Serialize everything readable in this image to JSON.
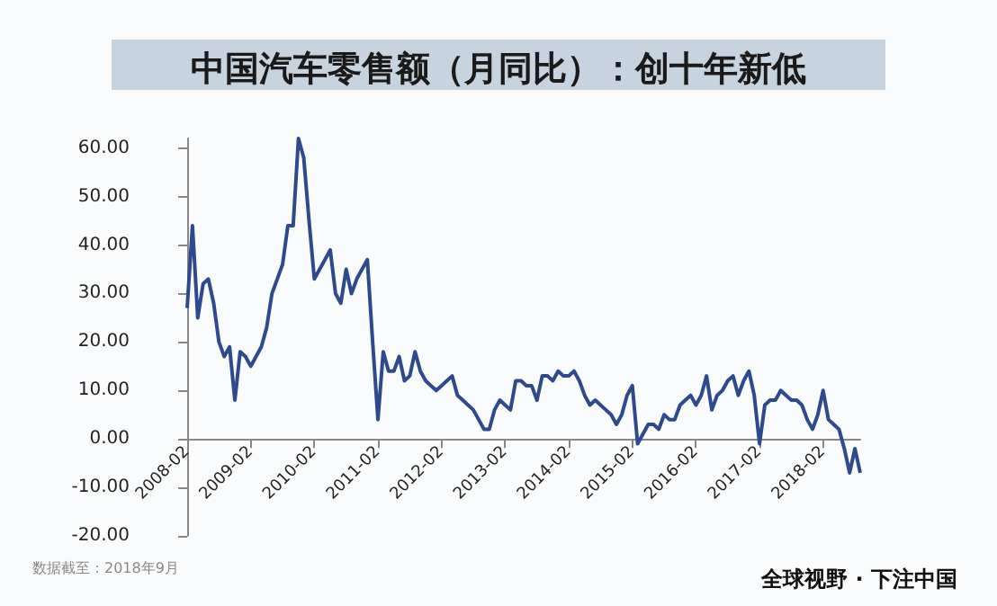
{
  "chart_data": {
    "type": "line",
    "title": "中国汽车零售额（月同比）：创十年新低",
    "x": [
      "2008-02",
      "2008-03",
      "2008-04",
      "2008-05",
      "2008-06",
      "2008-07",
      "2008-08",
      "2008-09",
      "2008-10",
      "2008-11",
      "2008-12",
      "2009-01",
      "2009-02",
      "2009-03",
      "2009-04",
      "2009-05",
      "2009-06",
      "2009-07",
      "2009-08",
      "2009-09",
      "2009-10",
      "2009-11",
      "2009-12",
      "2010-01",
      "2010-02",
      "2010-03",
      "2010-04",
      "2010-05",
      "2010-06",
      "2010-07",
      "2010-08",
      "2010-09",
      "2010-10",
      "2010-11",
      "2010-12",
      "2011-01",
      "2011-02",
      "2011-03",
      "2011-04",
      "2011-05",
      "2011-06",
      "2011-07",
      "2011-08",
      "2011-09",
      "2011-10",
      "2011-11",
      "2011-12",
      "2012-01",
      "2012-02",
      "2012-03",
      "2012-04",
      "2012-05",
      "2012-06",
      "2012-07",
      "2012-08",
      "2012-09",
      "2012-10",
      "2012-11",
      "2012-12",
      "2013-01",
      "2013-02",
      "2013-03",
      "2013-04",
      "2013-05",
      "2013-06",
      "2013-07",
      "2013-08",
      "2013-09",
      "2013-10",
      "2013-11",
      "2013-12",
      "2014-01",
      "2014-02",
      "2014-03",
      "2014-04",
      "2014-05",
      "2014-06",
      "2014-07",
      "2014-08",
      "2014-09",
      "2014-10",
      "2014-11",
      "2014-12",
      "2015-01",
      "2015-02",
      "2015-03",
      "2015-04",
      "2015-05",
      "2015-06",
      "2015-07",
      "2015-08",
      "2015-09",
      "2015-10",
      "2015-11",
      "2015-12",
      "2016-01",
      "2016-02",
      "2016-03",
      "2016-04",
      "2016-05",
      "2016-06",
      "2016-07",
      "2016-08",
      "2016-09",
      "2016-10",
      "2016-11",
      "2016-12",
      "2017-01",
      "2017-02",
      "2017-03",
      "2017-04",
      "2017-05",
      "2017-06",
      "2017-07",
      "2017-08",
      "2017-09",
      "2017-10",
      "2017-11",
      "2017-12",
      "2018-01",
      "2018-02",
      "2018-03",
      "2018-04",
      "2018-05",
      "2018-06",
      "2018-07",
      "2018-08",
      "2018-09"
    ],
    "series": [
      {
        "color": "#2e4a8c",
        "values": [
          27,
          44,
          25,
          32,
          33,
          28,
          20,
          17,
          19,
          8,
          18,
          17,
          15,
          17,
          19,
          23,
          30,
          33,
          36,
          44,
          44,
          62,
          58,
          45,
          33,
          35,
          37,
          39,
          30,
          28,
          35,
          30,
          33,
          35,
          37,
          20,
          4,
          18,
          14,
          14,
          17,
          12,
          13,
          18,
          14,
          12,
          11,
          10,
          11,
          12,
          13,
          9,
          8,
          7,
          6,
          4,
          2,
          2,
          6,
          8,
          7,
          6,
          12,
          12,
          11,
          11,
          8,
          13,
          13,
          12,
          14,
          13,
          13,
          14,
          12,
          9,
          7,
          8,
          7,
          6,
          5,
          3,
          5,
          9,
          11,
          -1,
          1,
          3,
          3,
          2,
          5,
          4,
          4,
          7,
          8,
          9,
          7,
          9,
          13,
          6,
          9,
          10,
          12,
          13,
          9,
          12,
          14,
          9,
          -1,
          7,
          8,
          8,
          10,
          9,
          8,
          8,
          7,
          4,
          2,
          5,
          10,
          4,
          3,
          2,
          -2,
          -7,
          -2,
          -7
        ]
      }
    ],
    "xlim": [
      "2008-02",
      "2018-09"
    ],
    "xticks": [
      "2008-02",
      "2009-02",
      "2010-02",
      "2011-02",
      "2012-02",
      "2013-02",
      "2014-02",
      "2015-02",
      "2016-02",
      "2017-02",
      "2018-02"
    ],
    "ylim": [
      -20,
      62
    ],
    "yticks": [
      {
        "value": -20,
        "label": "-20.00"
      },
      {
        "value": -10,
        "label": "-10.00"
      },
      {
        "value": 0,
        "label": "0.00"
      },
      {
        "value": 10,
        "label": "10.00"
      },
      {
        "value": 20,
        "label": "20.00"
      },
      {
        "value": 30,
        "label": "30.00"
      },
      {
        "value": 40,
        "label": "40.00"
      },
      {
        "value": 50,
        "label": "50.00"
      },
      {
        "value": 60,
        "label": "60.00"
      }
    ],
    "grid": false,
    "marker": "none",
    "line_style": "solid",
    "annotations": [
      "数据截至：2018年9月",
      "全球视野 · 下注中国"
    ]
  }
}
